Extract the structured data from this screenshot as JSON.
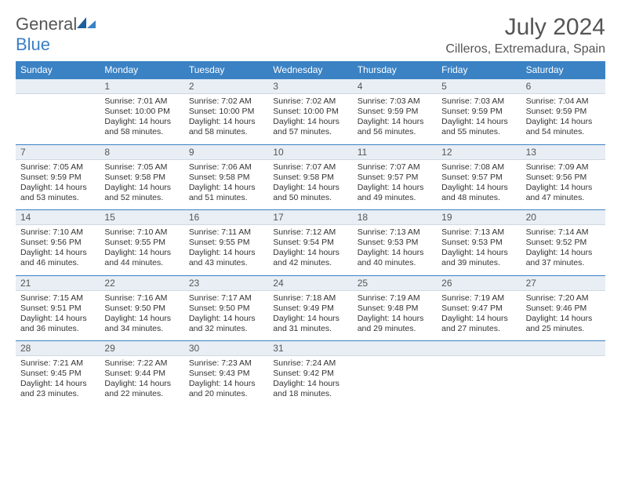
{
  "logo": {
    "word1": "General",
    "word2": "Blue"
  },
  "title": "July 2024",
  "location": "Cilleros, Extremadura, Spain",
  "weekdays": [
    "Sunday",
    "Monday",
    "Tuesday",
    "Wednesday",
    "Thursday",
    "Friday",
    "Saturday"
  ],
  "colors": {
    "header_bg": "#3b82c4",
    "daynum_bg": "#e8eef4",
    "text": "#555555",
    "logo_blue": "#3b7fc4"
  },
  "weeks": [
    {
      "nums": [
        "",
        "1",
        "2",
        "3",
        "4",
        "5",
        "6"
      ],
      "cells": [
        {
          "sunrise": "",
          "sunset": "",
          "daylight": ""
        },
        {
          "sunrise": "Sunrise: 7:01 AM",
          "sunset": "Sunset: 10:00 PM",
          "daylight": "Daylight: 14 hours and 58 minutes."
        },
        {
          "sunrise": "Sunrise: 7:02 AM",
          "sunset": "Sunset: 10:00 PM",
          "daylight": "Daylight: 14 hours and 58 minutes."
        },
        {
          "sunrise": "Sunrise: 7:02 AM",
          "sunset": "Sunset: 10:00 PM",
          "daylight": "Daylight: 14 hours and 57 minutes."
        },
        {
          "sunrise": "Sunrise: 7:03 AM",
          "sunset": "Sunset: 9:59 PM",
          "daylight": "Daylight: 14 hours and 56 minutes."
        },
        {
          "sunrise": "Sunrise: 7:03 AM",
          "sunset": "Sunset: 9:59 PM",
          "daylight": "Daylight: 14 hours and 55 minutes."
        },
        {
          "sunrise": "Sunrise: 7:04 AM",
          "sunset": "Sunset: 9:59 PM",
          "daylight": "Daylight: 14 hours and 54 minutes."
        }
      ]
    },
    {
      "nums": [
        "7",
        "8",
        "9",
        "10",
        "11",
        "12",
        "13"
      ],
      "cells": [
        {
          "sunrise": "Sunrise: 7:05 AM",
          "sunset": "Sunset: 9:59 PM",
          "daylight": "Daylight: 14 hours and 53 minutes."
        },
        {
          "sunrise": "Sunrise: 7:05 AM",
          "sunset": "Sunset: 9:58 PM",
          "daylight": "Daylight: 14 hours and 52 minutes."
        },
        {
          "sunrise": "Sunrise: 7:06 AM",
          "sunset": "Sunset: 9:58 PM",
          "daylight": "Daylight: 14 hours and 51 minutes."
        },
        {
          "sunrise": "Sunrise: 7:07 AM",
          "sunset": "Sunset: 9:58 PM",
          "daylight": "Daylight: 14 hours and 50 minutes."
        },
        {
          "sunrise": "Sunrise: 7:07 AM",
          "sunset": "Sunset: 9:57 PM",
          "daylight": "Daylight: 14 hours and 49 minutes."
        },
        {
          "sunrise": "Sunrise: 7:08 AM",
          "sunset": "Sunset: 9:57 PM",
          "daylight": "Daylight: 14 hours and 48 minutes."
        },
        {
          "sunrise": "Sunrise: 7:09 AM",
          "sunset": "Sunset: 9:56 PM",
          "daylight": "Daylight: 14 hours and 47 minutes."
        }
      ]
    },
    {
      "nums": [
        "14",
        "15",
        "16",
        "17",
        "18",
        "19",
        "20"
      ],
      "cells": [
        {
          "sunrise": "Sunrise: 7:10 AM",
          "sunset": "Sunset: 9:56 PM",
          "daylight": "Daylight: 14 hours and 46 minutes."
        },
        {
          "sunrise": "Sunrise: 7:10 AM",
          "sunset": "Sunset: 9:55 PM",
          "daylight": "Daylight: 14 hours and 44 minutes."
        },
        {
          "sunrise": "Sunrise: 7:11 AM",
          "sunset": "Sunset: 9:55 PM",
          "daylight": "Daylight: 14 hours and 43 minutes."
        },
        {
          "sunrise": "Sunrise: 7:12 AM",
          "sunset": "Sunset: 9:54 PM",
          "daylight": "Daylight: 14 hours and 42 minutes."
        },
        {
          "sunrise": "Sunrise: 7:13 AM",
          "sunset": "Sunset: 9:53 PM",
          "daylight": "Daylight: 14 hours and 40 minutes."
        },
        {
          "sunrise": "Sunrise: 7:13 AM",
          "sunset": "Sunset: 9:53 PM",
          "daylight": "Daylight: 14 hours and 39 minutes."
        },
        {
          "sunrise": "Sunrise: 7:14 AM",
          "sunset": "Sunset: 9:52 PM",
          "daylight": "Daylight: 14 hours and 37 minutes."
        }
      ]
    },
    {
      "nums": [
        "21",
        "22",
        "23",
        "24",
        "25",
        "26",
        "27"
      ],
      "cells": [
        {
          "sunrise": "Sunrise: 7:15 AM",
          "sunset": "Sunset: 9:51 PM",
          "daylight": "Daylight: 14 hours and 36 minutes."
        },
        {
          "sunrise": "Sunrise: 7:16 AM",
          "sunset": "Sunset: 9:50 PM",
          "daylight": "Daylight: 14 hours and 34 minutes."
        },
        {
          "sunrise": "Sunrise: 7:17 AM",
          "sunset": "Sunset: 9:50 PM",
          "daylight": "Daylight: 14 hours and 32 minutes."
        },
        {
          "sunrise": "Sunrise: 7:18 AM",
          "sunset": "Sunset: 9:49 PM",
          "daylight": "Daylight: 14 hours and 31 minutes."
        },
        {
          "sunrise": "Sunrise: 7:19 AM",
          "sunset": "Sunset: 9:48 PM",
          "daylight": "Daylight: 14 hours and 29 minutes."
        },
        {
          "sunrise": "Sunrise: 7:19 AM",
          "sunset": "Sunset: 9:47 PM",
          "daylight": "Daylight: 14 hours and 27 minutes."
        },
        {
          "sunrise": "Sunrise: 7:20 AM",
          "sunset": "Sunset: 9:46 PM",
          "daylight": "Daylight: 14 hours and 25 minutes."
        }
      ]
    },
    {
      "nums": [
        "28",
        "29",
        "30",
        "31",
        "",
        "",
        ""
      ],
      "cells": [
        {
          "sunrise": "Sunrise: 7:21 AM",
          "sunset": "Sunset: 9:45 PM",
          "daylight": "Daylight: 14 hours and 23 minutes."
        },
        {
          "sunrise": "Sunrise: 7:22 AM",
          "sunset": "Sunset: 9:44 PM",
          "daylight": "Daylight: 14 hours and 22 minutes."
        },
        {
          "sunrise": "Sunrise: 7:23 AM",
          "sunset": "Sunset: 9:43 PM",
          "daylight": "Daylight: 14 hours and 20 minutes."
        },
        {
          "sunrise": "Sunrise: 7:24 AM",
          "sunset": "Sunset: 9:42 PM",
          "daylight": "Daylight: 14 hours and 18 minutes."
        },
        {
          "sunrise": "",
          "sunset": "",
          "daylight": ""
        },
        {
          "sunrise": "",
          "sunset": "",
          "daylight": ""
        },
        {
          "sunrise": "",
          "sunset": "",
          "daylight": ""
        }
      ]
    }
  ]
}
